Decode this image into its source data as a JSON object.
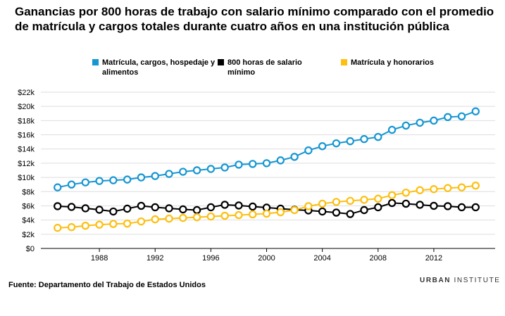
{
  "chart_title": "Ganancias por 800 horas de trabajo con salario mínimo comparado con el promedio de matrícula y cargos totales durante cuatro años en una institución pública",
  "source": "Fuente: Departamento del Trabajo de Estados Unidos",
  "brand": {
    "bold": "URBAN",
    "regular": "INSTITUTE"
  },
  "chart_data": {
    "type": "line",
    "xlabel": "",
    "ylabel": "",
    "x": [
      1985,
      1986,
      1987,
      1988,
      1989,
      1990,
      1991,
      1992,
      1993,
      1994,
      1995,
      1996,
      1997,
      1998,
      1999,
      2000,
      2001,
      2002,
      2003,
      2004,
      2005,
      2006,
      2007,
      2008,
      2009,
      2010,
      2011,
      2012,
      2013,
      2014,
      2015
    ],
    "xticks": [
      "1988",
      "1992",
      "1996",
      "2000",
      "2004",
      "2008",
      "2012"
    ],
    "xtick_values": [
      1988,
      1992,
      1996,
      2000,
      2004,
      2008,
      2012
    ],
    "xlim": [
      1983.8,
      2016.4
    ],
    "ylim": [
      0,
      22000
    ],
    "yticks": [
      "$0",
      "$2k",
      "$4k",
      "$6k",
      "$8k",
      "$10k",
      "$12k",
      "$14k",
      "$16k",
      "$18k",
      "$20k",
      "$22k"
    ],
    "ytick_values": [
      0,
      2000,
      4000,
      6000,
      8000,
      10000,
      12000,
      14000,
      16000,
      18000,
      20000,
      22000
    ],
    "grid": "horizontal",
    "legend_position": "top",
    "series": [
      {
        "name": "Matrícula, cargos, hospedaje y alimentos",
        "color": "#1696d2",
        "values": [
          8600,
          9000,
          9300,
          9500,
          9600,
          9700,
          10000,
          10200,
          10500,
          10800,
          11000,
          11200,
          11400,
          11800,
          11900,
          12000,
          12400,
          12900,
          13800,
          14400,
          14800,
          15100,
          15400,
          15700,
          16700,
          17300,
          17700,
          18000,
          18500,
          18600,
          19300
        ]
      },
      {
        "name": "800 horas de salario mínimo",
        "color": "#000000",
        "values": [
          5950,
          5850,
          5650,
          5450,
          5200,
          5600,
          6000,
          5800,
          5650,
          5500,
          5400,
          5800,
          6150,
          6050,
          5900,
          5750,
          5600,
          5450,
          5350,
          5200,
          5050,
          4850,
          5400,
          5800,
          6400,
          6300,
          6150,
          6000,
          5950,
          5800,
          5800
        ]
      },
      {
        "name": "Matrícula y honorarios",
        "color": "#fdbf11",
        "values": [
          2900,
          3000,
          3200,
          3350,
          3450,
          3500,
          3800,
          4100,
          4200,
          4300,
          4400,
          4500,
          4600,
          4700,
          4800,
          4900,
          5100,
          5400,
          5950,
          6300,
          6550,
          6700,
          6850,
          7000,
          7500,
          7850,
          8200,
          8350,
          8500,
          8600,
          8850
        ]
      }
    ]
  }
}
